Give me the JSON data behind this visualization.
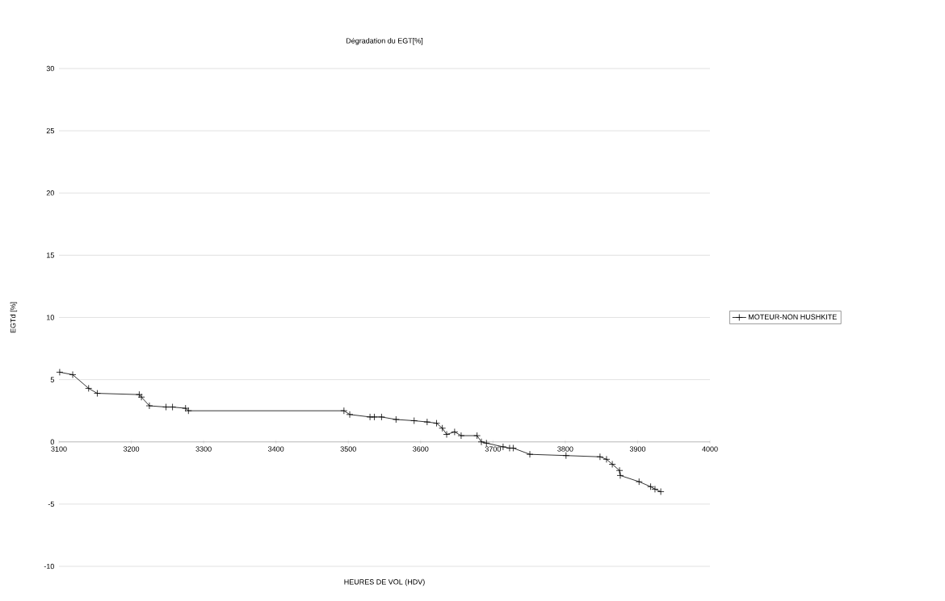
{
  "chart_data": {
    "type": "line",
    "title": "Dégradation du EGT[%]",
    "xlabel": "HEURES DE VOL (HDV)",
    "ylabel": "EGTd [%]",
    "xlim": [
      3100,
      4000
    ],
    "xticks": [
      3100,
      3200,
      3300,
      3400,
      3500,
      3600,
      3700,
      3800,
      3900,
      4000
    ],
    "ylim": [
      -10,
      30
    ],
    "yticks": [
      -10,
      -5,
      0,
      5,
      10,
      15,
      20,
      25,
      30
    ],
    "grid": "y",
    "legend": "right",
    "marker": "cross",
    "line_style": "solid",
    "series": [
      {
        "name": "MOTEUR-NON HUSHKITE",
        "color": "#000000",
        "x": [
          3101,
          3119,
          3141,
          3153,
          3211,
          3214,
          3225,
          3248,
          3257,
          3275,
          3279,
          3494,
          3502,
          3530,
          3536,
          3546,
          3566,
          3591,
          3609,
          3622,
          3630,
          3636,
          3647,
          3656,
          3678,
          3684,
          3691,
          3714,
          3723,
          3728,
          3751,
          3801,
          3848,
          3857,
          3865,
          3875,
          3876,
          3902,
          3918,
          3924,
          3932
        ],
        "values": [
          5.6,
          5.4,
          4.3,
          3.9,
          3.8,
          3.6,
          2.9,
          2.8,
          2.8,
          2.7,
          2.5,
          2.5,
          2.2,
          2.0,
          2.0,
          2.0,
          1.8,
          1.7,
          1.6,
          1.5,
          1.1,
          0.6,
          0.8,
          0.5,
          0.5,
          0.0,
          -0.1,
          -0.4,
          -0.5,
          -0.5,
          -1.0,
          -1.1,
          -1.2,
          -1.4,
          -1.8,
          -2.3,
          -2.7,
          -3.2,
          -3.6,
          -3.8,
          -4.0
        ]
      }
    ]
  }
}
